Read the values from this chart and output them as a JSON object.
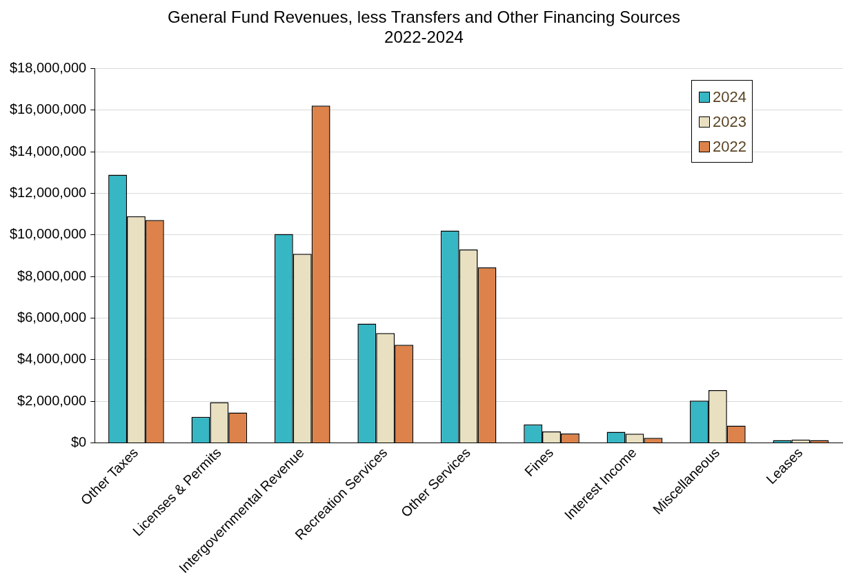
{
  "chart_data": {
    "type": "bar",
    "title": "General Fund Revenues, less Transfers and Other Financing Sources",
    "subtitle": "2022-2024",
    "categories": [
      "Other Taxes",
      "Licenses & Permits",
      "Intergovernmental Revenue",
      "Recreation Services",
      "Other Services",
      "Fines",
      "Interest Income",
      "Miscellaneous",
      "Leases"
    ],
    "series": [
      {
        "name": "2024",
        "color": "#37b6c4",
        "values": [
          12900000,
          1250000,
          10050000,
          5740000,
          10210000,
          890000,
          530000,
          2030000,
          130000
        ]
      },
      {
        "name": "2023",
        "color": "#e8e0c0",
        "values": [
          10900000,
          1960000,
          9090000,
          5280000,
          9300000,
          550000,
          440000,
          2540000,
          160000
        ]
      },
      {
        "name": "2022",
        "color": "#dd824a",
        "values": [
          10720000,
          1460000,
          16220000,
          4720000,
          8440000,
          450000,
          240000,
          830000,
          130000
        ]
      }
    ],
    "ylim": [
      0,
      18000000
    ],
    "yticks": [
      {
        "value": 0,
        "label": "$0"
      },
      {
        "value": 2000000,
        "label": "$2,000,000"
      },
      {
        "value": 4000000,
        "label": "$4,000,000"
      },
      {
        "value": 6000000,
        "label": "$6,000,000"
      },
      {
        "value": 8000000,
        "label": "$8,000,000"
      },
      {
        "value": 10000000,
        "label": "$10,000,000"
      },
      {
        "value": 12000000,
        "label": "$12,000,000"
      },
      {
        "value": 14000000,
        "label": "$14,000,000"
      },
      {
        "value": 16000000,
        "label": "$16,000,000"
      },
      {
        "value": 18000000,
        "label": "$18,000,000"
      }
    ],
    "grid": "y",
    "legend": "top right"
  }
}
